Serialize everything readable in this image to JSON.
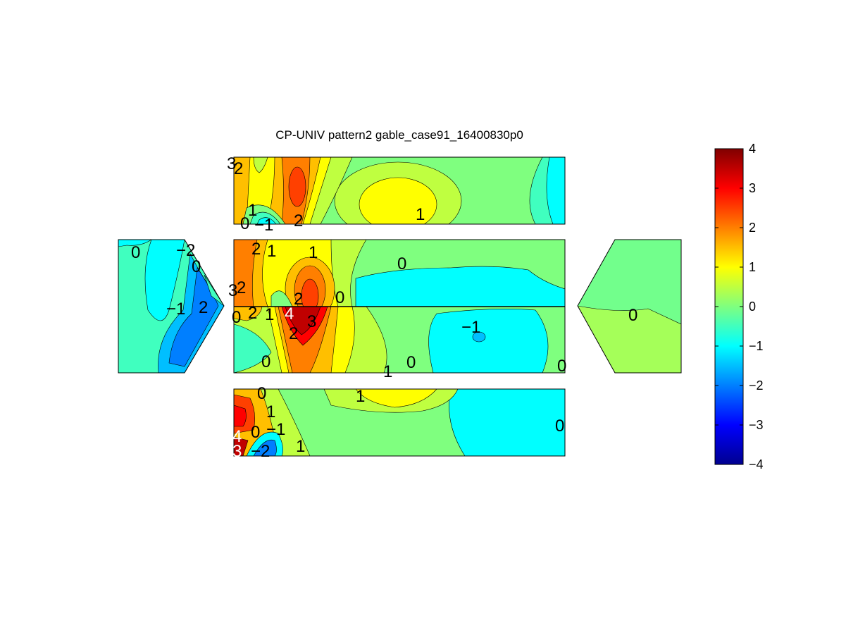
{
  "figure": {
    "title": "CP-UNIV pattern2 gable_case91_16400830p0"
  },
  "chart_data": {
    "type": "heatmap",
    "title": "CP-UNIV pattern2 gable_case91_16400830p0",
    "xlabel": "",
    "ylabel": "",
    "colormap": "jet",
    "colorbar": {
      "range": [
        -4,
        4
      ],
      "ticks": [
        "4",
        "3",
        "2",
        "1",
        "0",
        "−1",
        "−2",
        "−3",
        "−4"
      ],
      "stops": [
        "#00008f",
        "#0000ff",
        "#007fff",
        "#00ffff",
        "#7fff7f",
        "#ffff00",
        "#ff7f00",
        "#ff0000",
        "#800000"
      ]
    },
    "grid": false,
    "panels": [
      {
        "name": "top-face",
        "background": 0,
        "regions": [
          {
            "fill": 2,
            "at": "left-strip"
          },
          {
            "fill": 2.5,
            "at": "upper-left"
          },
          {
            "fill": 3,
            "at": "upper-left-core"
          },
          {
            "fill": 1,
            "at": "center-bottom"
          },
          {
            "fill": 0.5,
            "at": "center-bottom-ring"
          },
          {
            "fill": -1,
            "at": "right"
          },
          {
            "fill": -1,
            "at": "lower-left-edge"
          }
        ],
        "labels": [
          "3",
          "2",
          "1",
          "0",
          "−1",
          "2",
          "1"
        ]
      },
      {
        "name": "windward-roof",
        "background": 0,
        "regions": [
          {
            "fill": 2,
            "at": "left-strip"
          },
          {
            "fill": 2.5,
            "at": "upper-left-core"
          },
          {
            "fill": -1,
            "at": "right-half"
          }
        ],
        "labels": [
          "2",
          "1",
          "1",
          "0",
          "3",
          "2",
          "2",
          "0"
        ]
      },
      {
        "name": "leeward-roof",
        "background": 0,
        "regions": [
          {
            "fill": 3.5,
            "at": "ridge-peak"
          },
          {
            "fill": 4,
            "at": "ridge-peak-core"
          },
          {
            "fill": 2,
            "at": "left-lobe"
          },
          {
            "fill": -1,
            "at": "right-half"
          },
          {
            "fill": -1.5,
            "at": "right-spot"
          }
        ],
        "labels": [
          "0",
          "2",
          "1",
          "4",
          "3",
          "2",
          "0",
          "1",
          "0",
          "0",
          "−1"
        ]
      },
      {
        "name": "bottom-face",
        "background": 0,
        "regions": [
          {
            "fill": 3,
            "at": "lower-left-core"
          },
          {
            "fill": -2,
            "at": "lower-left-spot"
          },
          {
            "fill": 1,
            "at": "top-band"
          },
          {
            "fill": -1,
            "at": "right"
          }
        ],
        "labels": [
          "0",
          "1",
          "1",
          "0",
          "−1",
          "4",
          "3",
          "−2",
          "1",
          "0"
        ]
      },
      {
        "name": "left-gable",
        "background": -0.5,
        "regions": [
          {
            "fill": -1,
            "at": "upper-center"
          },
          {
            "fill": -1.5,
            "at": "lower-right"
          },
          {
            "fill": -2,
            "at": "lower-right-core"
          }
        ],
        "labels": [
          "0",
          "−2",
          "0",
          "−1",
          "2"
        ]
      },
      {
        "name": "right-gable",
        "background": 0,
        "regions": [
          {
            "fill": 0.3,
            "at": "lower-half"
          }
        ],
        "labels": [
          "0"
        ]
      }
    ]
  }
}
